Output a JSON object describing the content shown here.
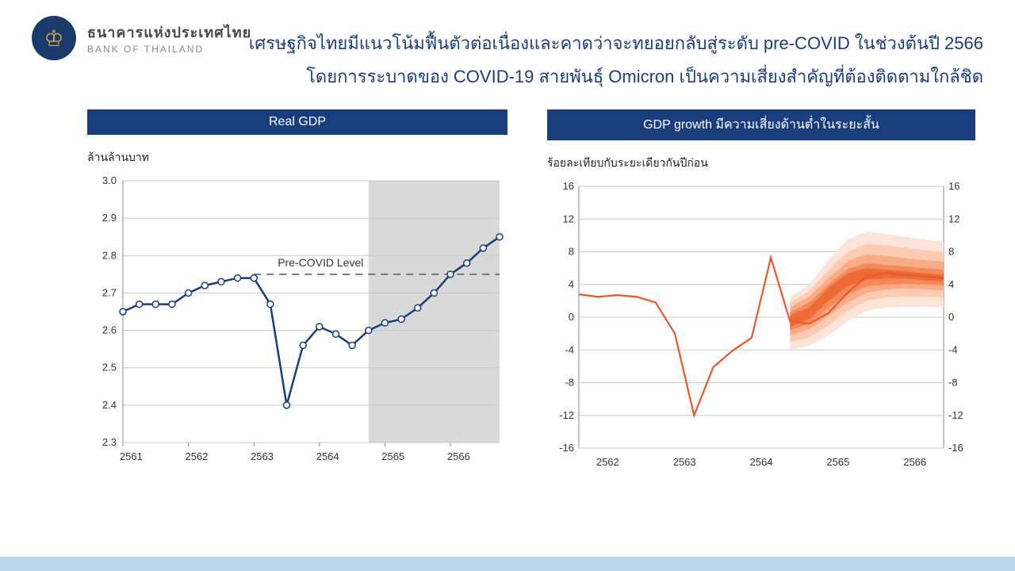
{
  "org": {
    "logo_glyph": "♔",
    "name_th": "ธนาคารแห่งประเทศไทย",
    "name_en": "BANK OF THAILAND"
  },
  "headline": {
    "line1": "เศรษฐกิจไทยมีแนวโน้มฟื้นตัวต่อเนื่องและคาดว่าจะทยอยกลับสู่ระดับ pre-COVID ในช่วงต้นปี 2566",
    "line2": "โดยการระบาดของ COVID-19 สายพันธุ์ Omicron เป็นความเสี่ยงสำคัญที่ต้องติดตามใกล้ชิด"
  },
  "headline_color": "#1a3d7c",
  "band_color": "#1a3d7c",
  "footer_band_color": "#bcd5e8",
  "chart_left": {
    "title": "Real GDP",
    "y_axis_label": "ล้านล้านบาท",
    "pre_covid_label": "Pre-COVID Level",
    "pre_covid_level": 2.75,
    "pre_covid_x_start": 8,
    "pre_covid_x_end": 23,
    "line_color": "#1a3d7c",
    "marker_fill": "#ffffff",
    "marker_stroke": "#1a3d7c",
    "grid_color": "#c8c8c8",
    "forecast_band_color": "#d9d9d9",
    "forecast_start_index": 15,
    "ylim": [
      2.3,
      3.0
    ],
    "ytick_step": 0.1,
    "x_categories": [
      "2561",
      "2562",
      "2563",
      "2564",
      "2565",
      "2566"
    ],
    "values": [
      2.65,
      2.67,
      2.67,
      2.67,
      2.7,
      2.72,
      2.73,
      2.74,
      2.74,
      2.67,
      2.4,
      2.56,
      2.61,
      2.59,
      2.56,
      2.6,
      2.62,
      2.63,
      2.66,
      2.7,
      2.75,
      2.78,
      2.82,
      2.85
    ],
    "line_width": 2.5,
    "marker_radius": 4
  },
  "chart_right": {
    "title": "GDP growth มีความเสี่ยงด้านต่ำในระยะสั้น",
    "y_axis_label": "ร้อยละเทียบกับระยะเดียวกันปีก่อน",
    "line_color": "#e8582c",
    "grid_color": "#c8c8c8",
    "background_color": "#ffffff",
    "fan_colors": [
      "#fde4d8",
      "#fbcbb3",
      "#f8ab85",
      "#f48a5a",
      "#ee6a37"
    ],
    "ylim": [
      -16,
      16
    ],
    "ytick_step": 4,
    "x_categories": [
      "2562",
      "2563",
      "2564",
      "2565",
      "2566"
    ],
    "median": [
      2.8,
      2.5,
      2.7,
      2.5,
      1.8,
      -2.0,
      -12.0,
      -6.1,
      -4.1,
      -2.5,
      7.3,
      -0.5,
      -0.8,
      0.5,
      3.0,
      5.0,
      5.4,
      5.2,
      5.0,
      4.8
    ],
    "fan_start_index": 11,
    "bands": [
      {
        "lo": [
          -4.0,
          -3.5,
          -2.2,
          -0.5,
          0.8,
          1.2,
          1.3,
          1.3,
          1.2
        ],
        "hi": [
          2.5,
          4.0,
          7.0,
          9.5,
          10.5,
          10.2,
          9.8,
          9.5,
          9.2
        ]
      },
      {
        "lo": [
          -3.0,
          -2.5,
          -1.0,
          0.8,
          2.0,
          2.4,
          2.5,
          2.5,
          2.4
        ],
        "hi": [
          1.8,
          3.2,
          5.8,
          8.0,
          9.0,
          8.8,
          8.5,
          8.2,
          8.0
        ]
      },
      {
        "lo": [
          -2.2,
          -1.5,
          0.2,
          1.8,
          3.0,
          3.4,
          3.5,
          3.4,
          3.3
        ],
        "hi": [
          1.2,
          2.5,
          4.8,
          6.8,
          7.7,
          7.5,
          7.2,
          7.0,
          6.8
        ]
      },
      {
        "lo": [
          -1.6,
          -0.8,
          1.2,
          2.8,
          3.8,
          4.0,
          4.1,
          4.0,
          3.9
        ],
        "hi": [
          0.6,
          1.8,
          4.0,
          5.9,
          6.6,
          6.4,
          6.2,
          6.0,
          5.8
        ]
      },
      {
        "lo": [
          -1.2,
          -0.2,
          2.0,
          3.8,
          4.6,
          4.7,
          4.7,
          4.5,
          4.4
        ],
        "hi": [
          0.2,
          1.2,
          3.6,
          5.4,
          6.0,
          5.8,
          5.6,
          5.4,
          5.2
        ]
      }
    ],
    "line_width": 2.2
  }
}
